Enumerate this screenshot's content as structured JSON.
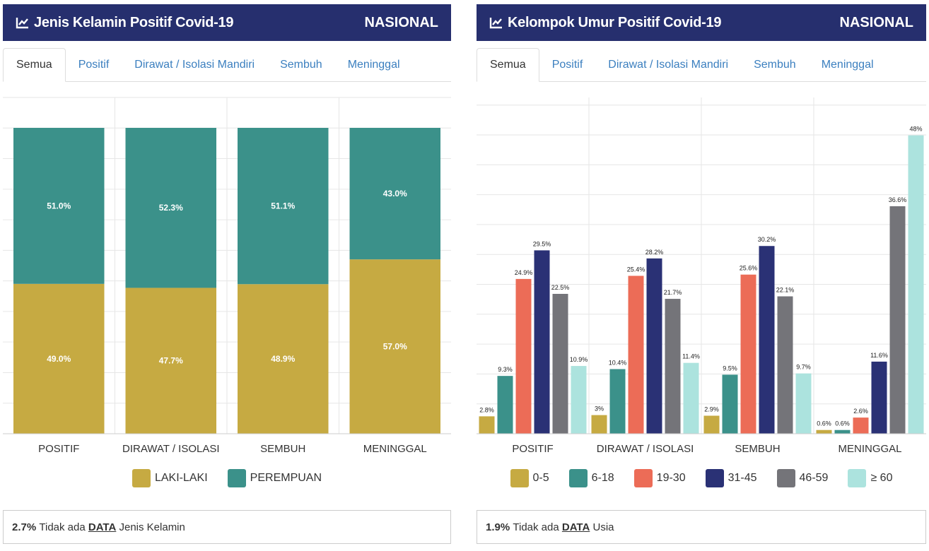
{
  "panels": {
    "gender": {
      "title": "Jenis Kelamin Positif Covid-19",
      "scope": "NASIONAL",
      "tabs": [
        "Semua",
        "Positif",
        "Dirawat / Isolasi Mandiri",
        "Sembuh",
        "Meninggal"
      ],
      "active_tab": "Semua",
      "footer": {
        "pct": "2.7%",
        "text1": "Tidak ada",
        "link": "DATA",
        "text2": "Jenis Kelamin"
      }
    },
    "age": {
      "title": "Kelompok Umur Positif Covid-19",
      "scope": "NASIONAL",
      "tabs": [
        "Semua",
        "Positif",
        "Dirawat / Isolasi Mandiri",
        "Sembuh",
        "Meninggal"
      ],
      "active_tab": "Semua",
      "footer": {
        "pct": "1.9%",
        "text1": "Tidak ada",
        "link": "DATA",
        "text2": "Usia"
      }
    }
  },
  "colors": {
    "header_bg": "#262f6e",
    "tab_link": "#3b7fbf",
    "laki": "#c6aa42",
    "perempuan": "#3b918a",
    "age_0_5": "#c6aa42",
    "age_6_18": "#3b918a",
    "age_19_30": "#ec6c57",
    "age_31_45": "#2a3175",
    "age_46_59": "#747479",
    "age_60": "#ace3de"
  },
  "chart_data": [
    {
      "type": "bar",
      "stacked": true,
      "categories": [
        "POSITIF",
        "DIRAWAT / ISOLASI",
        "SEMBUH",
        "MENINGGAL"
      ],
      "series": [
        {
          "name": "LAKI-LAKI",
          "values": [
            49.0,
            47.7,
            48.9,
            57.0
          ],
          "labels": [
            "49.0%",
            "47.7%",
            "48.9%",
            "57.0%"
          ],
          "color": "#c6aa42"
        },
        {
          "name": "PEREMPUAN",
          "values": [
            51.0,
            52.3,
            51.1,
            43.0
          ],
          "labels": [
            "51.0%",
            "52.3%",
            "51.1%",
            "43.0%"
          ],
          "color": "#3b918a"
        }
      ],
      "ylim": [
        0,
        100
      ],
      "grid": true,
      "legend": "bottom"
    },
    {
      "type": "bar",
      "categories": [
        "POSITIF",
        "DIRAWAT / ISOLASI",
        "SEMBUH",
        "MENINGGAL"
      ],
      "series": [
        {
          "name": "0-5",
          "values": [
            2.8,
            3,
            2.9,
            0.6
          ],
          "labels": [
            "2.8%",
            "3%",
            "2.9%",
            "0.6%"
          ],
          "color": "#c6aa42"
        },
        {
          "name": "6-18",
          "values": [
            9.3,
            10.4,
            9.5,
            0.6
          ],
          "labels": [
            "9.3%",
            "10.4%",
            "9.5%",
            "0.6%"
          ],
          "color": "#3b918a"
        },
        {
          "name": "19-30",
          "values": [
            24.9,
            25.4,
            25.6,
            2.6
          ],
          "labels": [
            "24.9%",
            "25.4%",
            "25.6%",
            "2.6%"
          ],
          "color": "#ec6c57"
        },
        {
          "name": "31-45",
          "values": [
            29.5,
            28.2,
            30.2,
            11.6
          ],
          "labels": [
            "29.5%",
            "28.2%",
            "30.2%",
            "11.6%"
          ],
          "color": "#2a3175"
        },
        {
          "name": "46-59",
          "values": [
            22.5,
            21.7,
            22.1,
            36.6
          ],
          "labels": [
            "22.5%",
            "21.7%",
            "22.1%",
            "36.6%"
          ],
          "color": "#747479"
        },
        {
          "name": "≥ 60",
          "values": [
            10.9,
            11.4,
            9.7,
            48
          ],
          "labels": [
            "10.9%",
            "11.4%",
            "9.7%",
            "48%"
          ],
          "color": "#ace3de"
        }
      ],
      "ylim": [
        0,
        55
      ],
      "grid": true,
      "legend": "bottom"
    }
  ]
}
